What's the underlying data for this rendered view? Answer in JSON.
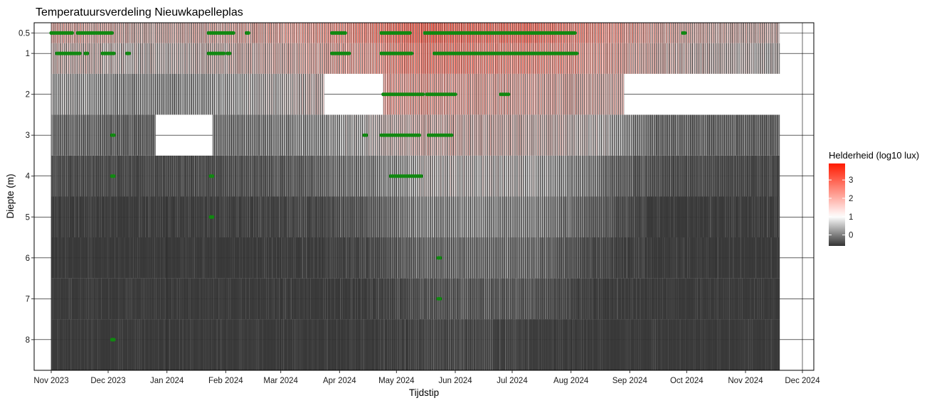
{
  "chart_data": {
    "type": "heatmap",
    "title": "Temperatuursverdeling Nieuwkapelleplas",
    "xlabel": "Tijdstip",
    "ylabel": "Diepte (m)",
    "x_range": [
      "2023-10-23",
      "2024-12-07"
    ],
    "y_range": [
      0.25,
      8.75
    ],
    "y_reversed": true,
    "x_ticks": [
      {
        "date": "2023-11-01",
        "label": "Nov 2023"
      },
      {
        "date": "2023-12-01",
        "label": "Dec 2023"
      },
      {
        "date": "2024-01-01",
        "label": "Jan 2024"
      },
      {
        "date": "2024-02-01",
        "label": "Feb 2024"
      },
      {
        "date": "2024-03-01",
        "label": "Mar 2024"
      },
      {
        "date": "2024-04-01",
        "label": "Apr 2024"
      },
      {
        "date": "2024-05-01",
        "label": "May 2024"
      },
      {
        "date": "2024-06-01",
        "label": "Jun 2024"
      },
      {
        "date": "2024-07-01",
        "label": "Jul 2024"
      },
      {
        "date": "2024-08-01",
        "label": "Aug 2024"
      },
      {
        "date": "2024-09-01",
        "label": "Sep 2024"
      },
      {
        "date": "2024-10-01",
        "label": "Oct 2024"
      },
      {
        "date": "2024-11-01",
        "label": "Nov 2024"
      },
      {
        "date": "2024-12-01",
        "label": "Dec 2024"
      }
    ],
    "y_ticks": [
      {
        "value": 0.5,
        "label": "0.5"
      },
      {
        "value": 1,
        "label": "1"
      },
      {
        "value": 2,
        "label": "2"
      },
      {
        "value": 3,
        "label": "3"
      },
      {
        "value": 4,
        "label": "4"
      },
      {
        "value": 5,
        "label": "5"
      },
      {
        "value": 6,
        "label": "6"
      },
      {
        "value": 7,
        "label": "7"
      },
      {
        "value": 8,
        "label": "8"
      }
    ],
    "depths": [
      0.5,
      1,
      2,
      3,
      4,
      5,
      6,
      7,
      8
    ],
    "fill_scale": {
      "name": "Helderheid (log10 lux)",
      "min": -0.6,
      "max": 3.9,
      "low_color": "#333333",
      "mid_color": "#ffffff",
      "high_color": "#ff1a00",
      "midpoint": 1,
      "breaks": [
        0,
        1,
        2,
        3
      ]
    },
    "data_start": "2023-11-01",
    "data_end": "2024-11-19",
    "monthly_log10_lux": [
      {
        "month": "2023-11",
        "values": [
          1.9,
          1.5,
          0.9,
          0.3,
          -0.2,
          -0.5,
          -0.6,
          -0.6,
          -0.6
        ]
      },
      {
        "month": "2023-12",
        "values": [
          1.6,
          1.2,
          0.6,
          0.1,
          -0.3,
          -0.5,
          -0.6,
          -0.6,
          -0.6
        ]
      },
      {
        "month": "2024-01",
        "values": [
          1.7,
          1.3,
          0.7,
          null,
          -0.2,
          -0.5,
          -0.6,
          -0.6,
          -0.6
        ]
      },
      {
        "month": "2024-02",
        "values": [
          2.0,
          1.6,
          1.0,
          0.4,
          -0.1,
          -0.4,
          -0.6,
          -0.6,
          -0.6
        ]
      },
      {
        "month": "2024-03",
        "values": [
          2.3,
          1.9,
          1.3,
          0.7,
          0.1,
          -0.3,
          -0.5,
          -0.6,
          -0.6
        ]
      },
      {
        "month": "2024-04",
        "values": [
          2.7,
          2.3,
          null,
          1.1,
          0.5,
          0.0,
          -0.3,
          -0.5,
          -0.6
        ]
      },
      {
        "month": "2024-05",
        "values": [
          3.2,
          2.9,
          2.3,
          1.7,
          1.1,
          0.6,
          0.2,
          -0.1,
          -0.3
        ]
      },
      {
        "month": "2024-06",
        "values": [
          3.0,
          2.7,
          2.1,
          1.6,
          1.1,
          0.7,
          0.3,
          0.0,
          -0.3
        ]
      },
      {
        "month": "2024-07",
        "values": [
          3.0,
          2.6,
          2.0,
          1.5,
          1.0,
          0.6,
          0.2,
          -0.1,
          -0.5
        ]
      },
      {
        "month": "2024-08",
        "values": [
          2.6,
          2.3,
          1.8,
          1.2,
          0.4,
          0.0,
          -0.3,
          -0.5,
          -0.6
        ]
      },
      {
        "month": "2024-09",
        "values": [
          2.0,
          1.7,
          null,
          0.2,
          -0.2,
          -0.5,
          -0.6,
          -0.6,
          -0.6
        ]
      },
      {
        "month": "2024-10",
        "values": [
          1.6,
          1.3,
          null,
          0.2,
          -0.2,
          -0.5,
          -0.6,
          -0.6,
          -0.6
        ]
      },
      {
        "month": "2024-11",
        "values": [
          1.5,
          1.1,
          null,
          0.1,
          -0.3,
          -0.5,
          -0.6,
          -0.6,
          -0.6
        ]
      }
    ],
    "missing_blocks": [
      {
        "start": "2023-12-26",
        "end": "2024-01-25",
        "depth": 3
      },
      {
        "start": "2024-03-24",
        "end": "2024-04-24",
        "depth": 2
      },
      {
        "start": "2024-08-29",
        "end": "2024-11-19",
        "depth": 2
      }
    ],
    "markers": {
      "color": "#118811",
      "series": [
        {
          "depth": 0.5,
          "ranges": [
            [
              "2023-11-01",
              "2023-11-12"
            ],
            [
              "2023-11-15",
              "2023-12-03"
            ],
            [
              "2024-01-23",
              "2024-02-05"
            ],
            [
              "2024-02-12",
              "2024-02-13"
            ],
            [
              "2024-03-28",
              "2024-04-04"
            ],
            [
              "2024-04-23",
              "2024-05-08"
            ],
            [
              "2024-05-16",
              "2024-08-03"
            ],
            [
              "2024-09-29",
              "2024-09-30"
            ]
          ]
        },
        {
          "depth": 1,
          "ranges": [
            [
              "2023-11-04",
              "2023-11-16"
            ],
            [
              "2023-11-19",
              "2023-11-20"
            ],
            [
              "2023-11-28",
              "2023-12-04"
            ],
            [
              "2023-12-11",
              "2023-12-12"
            ],
            [
              "2024-01-23",
              "2024-01-31"
            ],
            [
              "2024-02-02",
              "2024-02-03"
            ],
            [
              "2024-03-28",
              "2024-04-06"
            ],
            [
              "2024-04-23",
              "2024-05-09"
            ],
            [
              "2024-05-21",
              "2024-08-04"
            ]
          ]
        },
        {
          "depth": 2,
          "ranges": [
            [
              "2024-04-24",
              "2024-05-15"
            ],
            [
              "2024-05-17",
              "2024-05-30"
            ],
            [
              "2024-05-31",
              "2024-06-01"
            ],
            [
              "2024-06-25",
              "2024-06-29"
            ]
          ]
        },
        {
          "depth": 3,
          "ranges": [
            [
              "2023-12-03",
              "2023-12-04"
            ],
            [
              "2024-04-14",
              "2024-04-15"
            ],
            [
              "2024-04-23",
              "2024-05-13"
            ],
            [
              "2024-05-18",
              "2024-05-30"
            ]
          ]
        },
        {
          "depth": 4,
          "ranges": [
            [
              "2023-12-03",
              "2023-12-04"
            ],
            [
              "2024-01-24",
              "2024-01-25"
            ],
            [
              "2024-04-28",
              "2024-05-14"
            ]
          ]
        },
        {
          "depth": 5,
          "ranges": [
            [
              "2024-01-24",
              "2024-01-25"
            ]
          ]
        },
        {
          "depth": 6,
          "ranges": [
            [
              "2024-05-23",
              "2024-05-24"
            ]
          ]
        },
        {
          "depth": 7,
          "ranges": [
            [
              "2024-05-23",
              "2024-05-24"
            ]
          ]
        },
        {
          "depth": 8,
          "ranges": [
            [
              "2023-12-03",
              "2023-12-04"
            ]
          ]
        }
      ]
    },
    "grid": true,
    "legend_position": "right"
  }
}
